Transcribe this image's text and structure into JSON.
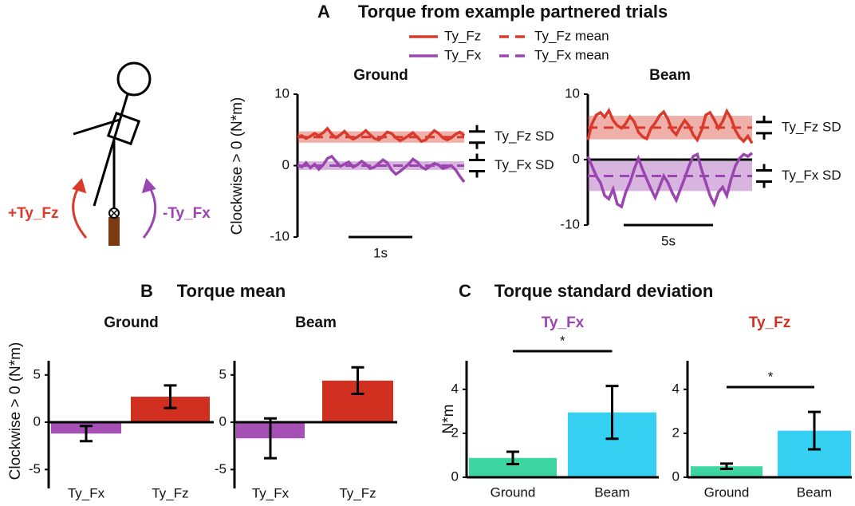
{
  "panels": [
    {
      "letter": "A",
      "title": "Torque from example partnered trials"
    },
    {
      "letter": "B",
      "title": "Torque mean"
    },
    {
      "letter": "C",
      "title": "Torque standard deviation"
    }
  ],
  "diagram": {
    "labels": [
      "+Ty_Fz",
      "-Ty_Fx"
    ]
  },
  "chart_data": [
    {
      "type": "line",
      "title": "Ground",
      "ylabel": "Clockwise > 0 (N*m)",
      "ylim": [
        -10,
        10
      ],
      "yticks": [
        -10,
        0,
        10
      ],
      "scale_bar": "1s",
      "annotations": [
        "Ty_Fz SD",
        "Ty_Fx SD"
      ],
      "series": [
        {
          "name": "Ty_Fz",
          "color": "#d93a2b",
          "values": [
            4,
            4.2,
            3.8,
            4.1,
            4.5,
            4.2,
            4.6,
            5.2,
            4.4,
            3.9,
            4.3,
            4.8,
            4.1,
            3.7,
            4.0,
            4.4,
            4.9,
            4.3,
            3.8,
            3.6,
            4.1,
            4.7,
            4.5,
            3.9,
            3.5,
            3.8,
            4.2,
            4.6,
            4.0,
            3.4,
            3.6,
            4.3,
            4.9,
            4.5,
            3.9,
            3.6,
            3.9,
            4.4,
            4.7,
            4.2
          ]
        },
        {
          "name": "Ty_Fx",
          "color": "#9b45b0",
          "values": [
            0.1,
            -0.2,
            0.4,
            -0.3,
            0.2,
            -0.5,
            0.1,
            1.0,
            1.3,
            0.6,
            -0.1,
            0.2,
            0.5,
            -0.2,
            0.1,
            0.6,
            0.2,
            -0.4,
            -0.2,
            0.3,
            0.8,
            0.4,
            -0.6,
            -1.2,
            -0.8,
            -0.3,
            0.2,
            0.9,
            0.5,
            -0.2,
            -0.5,
            -0.1,
            0.3,
            0.1,
            -0.4,
            -0.2,
            0.0,
            -0.6,
            -1.5,
            -2.3
          ]
        },
        {
          "name": "Ty_Fz mean",
          "color": "#d93a2b",
          "dashed": true,
          "mean": 4,
          "sd": 0.8
        },
        {
          "name": "Ty_Fx mean",
          "color": "#9b45b0",
          "dashed": true,
          "mean": 0,
          "sd": 0.6
        }
      ]
    },
    {
      "type": "line",
      "title": "Beam",
      "ylim": [
        -10,
        10
      ],
      "yticks": [
        -10,
        0,
        10
      ],
      "scale_bar": "5s",
      "annotations": [
        "Ty_Fz SD",
        "Ty_Fx SD"
      ],
      "series": [
        {
          "color": "#d93a2b",
          "values": [
            3.0,
            5.5,
            6.8,
            7.2,
            6.5,
            7.5,
            6.0,
            5.2,
            4.8,
            5.5,
            6.6,
            5.8,
            4.2,
            3.5,
            3.2,
            4.8,
            5.6,
            6.7,
            7.3,
            6.2,
            4.5,
            3.8,
            5.0,
            6.0,
            5.2,
            3.8,
            3.0,
            4.5,
            6.8,
            7.2,
            6.1,
            4.8,
            5.8,
            7.4,
            6.3,
            4.5,
            3.4,
            2.8,
            3.6,
            2.5
          ]
        },
        {
          "color": "#9b45b0",
          "values": [
            0.5,
            -1.0,
            -2.5,
            -3.5,
            -5.5,
            -6.0,
            -4.5,
            -6.8,
            -7.2,
            -5.0,
            -3.5,
            -1.5,
            0.2,
            -1.5,
            -3.0,
            -4.5,
            -5.8,
            -4.2,
            -2.5,
            -3.5,
            -5.0,
            -6.2,
            -4.5,
            -2.8,
            -1.0,
            0.5,
            0.8,
            -1.5,
            -3.5,
            -5.5,
            -6.8,
            -5.0,
            -4.2,
            -5.5,
            -3.0,
            -1.0,
            0.2,
            0.8,
            0.5,
            1.0
          ]
        },
        {
          "color": "#d93a2b",
          "dashed": true,
          "mean": 4.9,
          "sd": 1.8
        },
        {
          "color": "#9b45b0",
          "dashed": true,
          "mean": -2.5,
          "sd": 2.3
        }
      ]
    },
    {
      "type": "bar",
      "title": "Ground",
      "ylabel": "Clockwise > 0 (N*m)",
      "categories": [
        "Ty_Fx",
        "Ty_Fz"
      ],
      "values": [
        -1.2,
        2.7
      ],
      "errors": [
        0.8,
        1.2
      ],
      "colors": [
        "#a64fb5",
        "#d12f1f"
      ],
      "ylim": [
        -7,
        6.5
      ],
      "yticks": [
        -5,
        0,
        5
      ]
    },
    {
      "type": "bar",
      "title": "Beam",
      "categories": [
        "Ty_Fx",
        "Ty_Fz"
      ],
      "values": [
        -1.7,
        4.4
      ],
      "errors": [
        2.1,
        1.4
      ],
      "colors": [
        "#a64fb5",
        "#d12f1f"
      ],
      "ylim": [
        -7,
        6.5
      ],
      "yticks": [
        -5,
        0,
        5
      ]
    },
    {
      "type": "bar",
      "title": "Ty_Fx",
      "title_color": "#9b45b0",
      "ylabel": "N*m",
      "categories": [
        "Ground",
        "Beam"
      ],
      "values": [
        0.88,
        2.95
      ],
      "errors": [
        0.28,
        1.2
      ],
      "colors": [
        "#3dd6a3",
        "#36d1f2"
      ],
      "ylim": [
        0,
        5.3
      ],
      "yticks": [
        0,
        2,
        4
      ],
      "significance": "*"
    },
    {
      "type": "bar",
      "title": "Ty_Fz",
      "title_color": "#d12f1f",
      "categories": [
        "Ground",
        "Beam"
      ],
      "values": [
        0.5,
        2.12
      ],
      "errors": [
        0.12,
        0.85
      ],
      "colors": [
        "#3dd6a3",
        "#36d1f2"
      ],
      "ylim": [
        0,
        5.3
      ],
      "yticks": [
        0,
        2,
        4
      ],
      "significance": "*"
    }
  ]
}
